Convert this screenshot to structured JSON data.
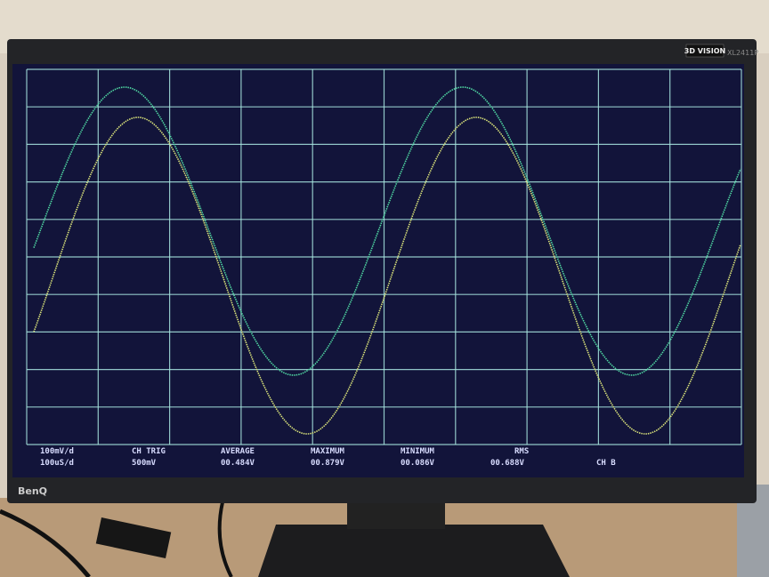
{
  "monitor": {
    "badge": "3D VISION",
    "model": "XL2411P",
    "brand": "BenQ"
  },
  "scope": {
    "rows": [
      [
        "100mV/d",
        "CH TRIG",
        "AVERAGE",
        "MAXIMUM",
        "MINIMUM",
        "RMS"
      ],
      [
        "100uS/d",
        "500mV",
        "00.484V",
        "00.879V",
        "00.086V",
        "00.688V",
        "CH B"
      ]
    ]
  }
}
